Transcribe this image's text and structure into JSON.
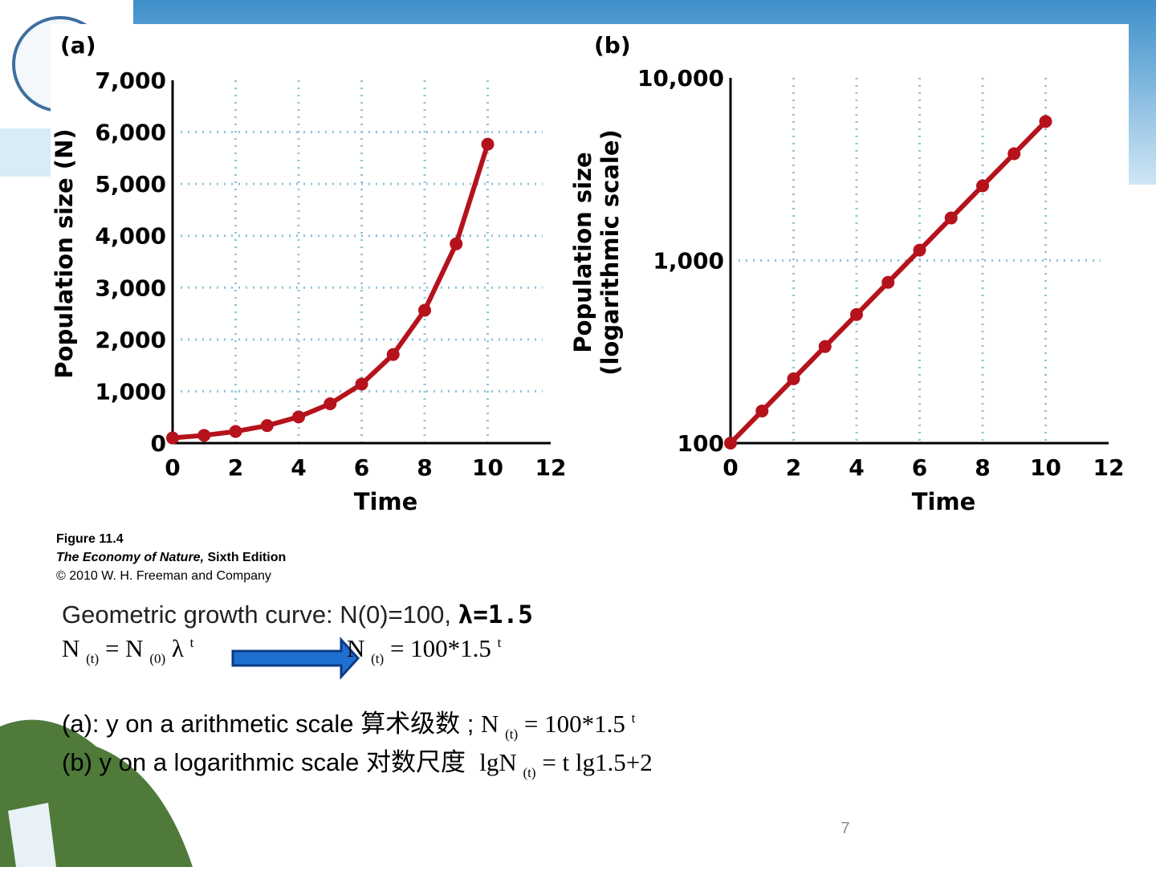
{
  "chart_data": [
    {
      "type": "line",
      "panel": "(a)",
      "ylabel": [
        "Population size (N)"
      ],
      "xlabel": "Time",
      "x": [
        0,
        1,
        2,
        3,
        4,
        5,
        6,
        7,
        8,
        9,
        10
      ],
      "values": [
        100,
        150,
        225,
        338,
        506,
        759,
        1139,
        1709,
        2563,
        3844,
        5767
      ],
      "color": "#b5121b",
      "log_y": false,
      "grid": true,
      "xlim": [
        0,
        12
      ],
      "xticks": [
        0,
        2,
        4,
        6,
        8,
        10,
        12
      ],
      "ylim": [
        0,
        7000
      ],
      "yticks": [
        0,
        {
          "value": 1000,
          "label": "1,000"
        },
        {
          "value": 2000,
          "label": "2,000"
        },
        {
          "value": 3000,
          "label": "3,000"
        },
        {
          "value": 4000,
          "label": "4,000"
        },
        {
          "value": 5000,
          "label": "5,000"
        },
        {
          "value": 6000,
          "label": "6,000"
        },
        {
          "value": 7000,
          "label": "7,000"
        }
      ]
    },
    {
      "type": "line",
      "panel": "(b)",
      "ylabel": [
        "Population size",
        "(logarithmic scale)"
      ],
      "xlabel": "Time",
      "x": [
        0,
        1,
        2,
        3,
        4,
        5,
        6,
        7,
        8,
        9,
        10
      ],
      "values": [
        100,
        150,
        225,
        338,
        506,
        759,
        1139,
        1709,
        2563,
        3844,
        5767
      ],
      "color": "#b5121b",
      "log_y": true,
      "grid": true,
      "xlim": [
        0,
        12
      ],
      "xticks": [
        0,
        2,
        4,
        6,
        8,
        10,
        12
      ],
      "ylim": [
        100,
        10000
      ],
      "yticks": [
        100,
        {
          "value": 1000,
          "label": "1,000"
        },
        {
          "value": 10000,
          "label": "10,000"
        }
      ]
    }
  ],
  "caption": [
    "Figure 11.4",
    "The Economy of Nature,",
    " Sixth Edition",
    "© 2010 W. H. Freeman and Company"
  ],
  "heading": [
    "Geometric growth curve: N(0)=100, ",
    "λ=1.5"
  ],
  "formula_left": [
    "N ",
    "(t)",
    " = N ",
    "(0)",
    " λ ",
    "t"
  ],
  "formula_right": [
    "N ",
    "(t)",
    " = 100*1.5 ",
    "t"
  ],
  "line_a": [
    "(a): y on a arithmetic scale 算术级数 ; ",
    "N ",
    "(t)",
    " = 100*1.5 ",
    "t"
  ],
  "line_b": [
    "(b) y on a logarithmic scale 对数尺度  ",
    "lgN ",
    "(t)",
    " = t lg1.5+2"
  ],
  "page_number": "7"
}
